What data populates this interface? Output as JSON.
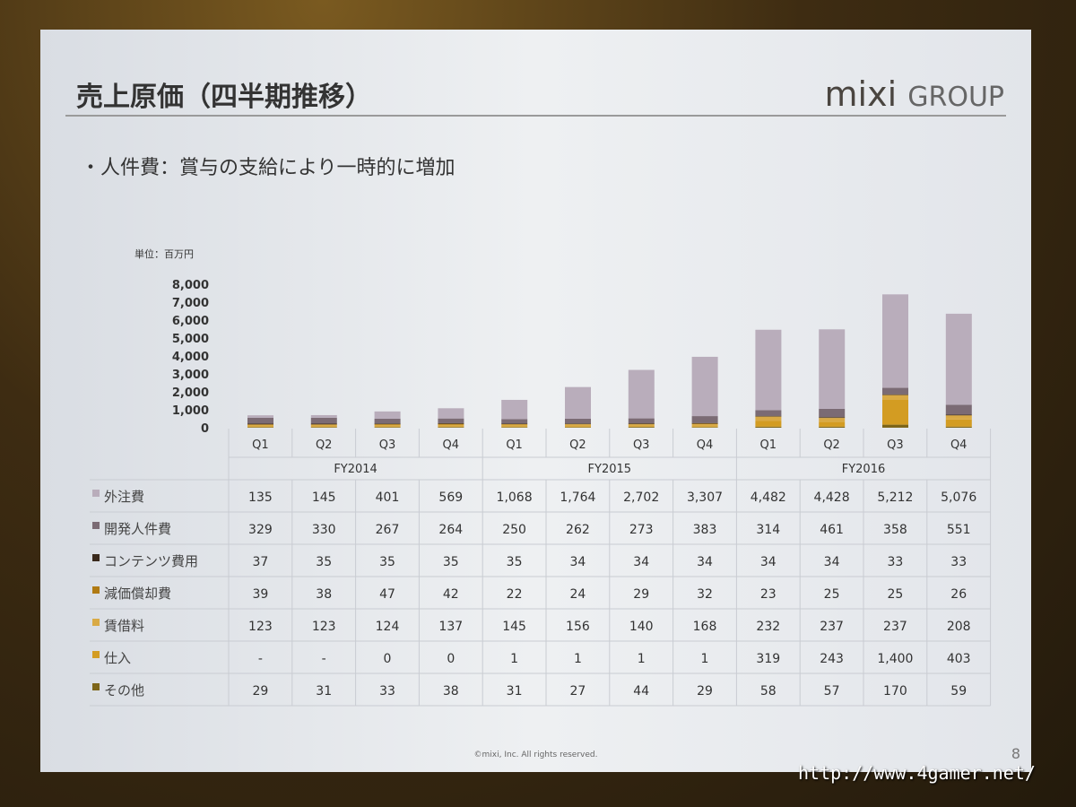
{
  "slide": {
    "title": "売上原価（四半期推移）",
    "logo_main": "mixi",
    "logo_sub": "GROUP",
    "bullet": "・人件費：賞与の支給により一時的に増加",
    "unit": "単位：百万円",
    "footer": "©mixi, Inc. All rights reserved.",
    "page": "8"
  },
  "watermark": "http://www.4gamer.net/",
  "chart_data": {
    "type": "bar",
    "stacked": true,
    "title": "売上原価（四半期推移）",
    "ylabel": "単位：百万円",
    "ylim": [
      0,
      8000
    ],
    "yticks": [
      "0",
      "1,000",
      "2,000",
      "3,000",
      "4,000",
      "5,000",
      "6,000",
      "7,000",
      "8,000"
    ],
    "categories": [
      "Q1",
      "Q2",
      "Q3",
      "Q4",
      "Q1",
      "Q2",
      "Q3",
      "Q4",
      "Q1",
      "Q2",
      "Q3",
      "Q4"
    ],
    "groups": [
      "FY2014",
      "FY2015",
      "FY2016"
    ],
    "series": [
      {
        "name": "外注費",
        "color": "#b9adbb",
        "labels": [
          "135",
          "145",
          "401",
          "569",
          "1,068",
          "1,764",
          "2,702",
          "3,307",
          "4,482",
          "4,428",
          "5,212",
          "5,076"
        ],
        "values": [
          135,
          145,
          401,
          569,
          1068,
          1764,
          2702,
          3307,
          4482,
          4428,
          5212,
          5076
        ]
      },
      {
        "name": "開発人件費",
        "color": "#7b6b74",
        "labels": [
          "329",
          "330",
          "267",
          "264",
          "250",
          "262",
          "273",
          "383",
          "314",
          "461",
          "358",
          "551"
        ],
        "values": [
          329,
          330,
          267,
          264,
          250,
          262,
          273,
          383,
          314,
          461,
          358,
          551
        ]
      },
      {
        "name": "コンテンツ費用",
        "color": "#3a2a1c",
        "labels": [
          "37",
          "35",
          "35",
          "35",
          "35",
          "34",
          "34",
          "34",
          "34",
          "34",
          "33",
          "33"
        ],
        "values": [
          37,
          35,
          35,
          35,
          35,
          34,
          34,
          34,
          34,
          34,
          33,
          33
        ]
      },
      {
        "name": "減価償却費",
        "color": "#b07a12",
        "labels": [
          "39",
          "38",
          "47",
          "42",
          "22",
          "24",
          "29",
          "32",
          "23",
          "25",
          "25",
          "26"
        ],
        "values": [
          39,
          38,
          47,
          42,
          22,
          24,
          29,
          32,
          23,
          25,
          25,
          26
        ]
      },
      {
        "name": "賃借料",
        "color": "#d9aa45",
        "labels": [
          "123",
          "123",
          "124",
          "137",
          "145",
          "156",
          "140",
          "168",
          "232",
          "237",
          "237",
          "208"
        ],
        "values": [
          123,
          123,
          124,
          137,
          145,
          156,
          140,
          168,
          232,
          237,
          237,
          208
        ]
      },
      {
        "name": "仕入",
        "color": "#d39c22",
        "labels": [
          "-",
          "-",
          "0",
          "0",
          "1",
          "1",
          "1",
          "1",
          "319",
          "243",
          "1,400",
          "403"
        ],
        "values": [
          0,
          0,
          0,
          0,
          1,
          1,
          1,
          1,
          319,
          243,
          1400,
          403
        ]
      },
      {
        "name": "その他",
        "color": "#7d6519",
        "labels": [
          "29",
          "31",
          "33",
          "38",
          "31",
          "27",
          "44",
          "29",
          "58",
          "57",
          "170",
          "59"
        ],
        "values": [
          29,
          31,
          33,
          38,
          31,
          27,
          44,
          29,
          58,
          57,
          170,
          59
        ]
      }
    ]
  }
}
